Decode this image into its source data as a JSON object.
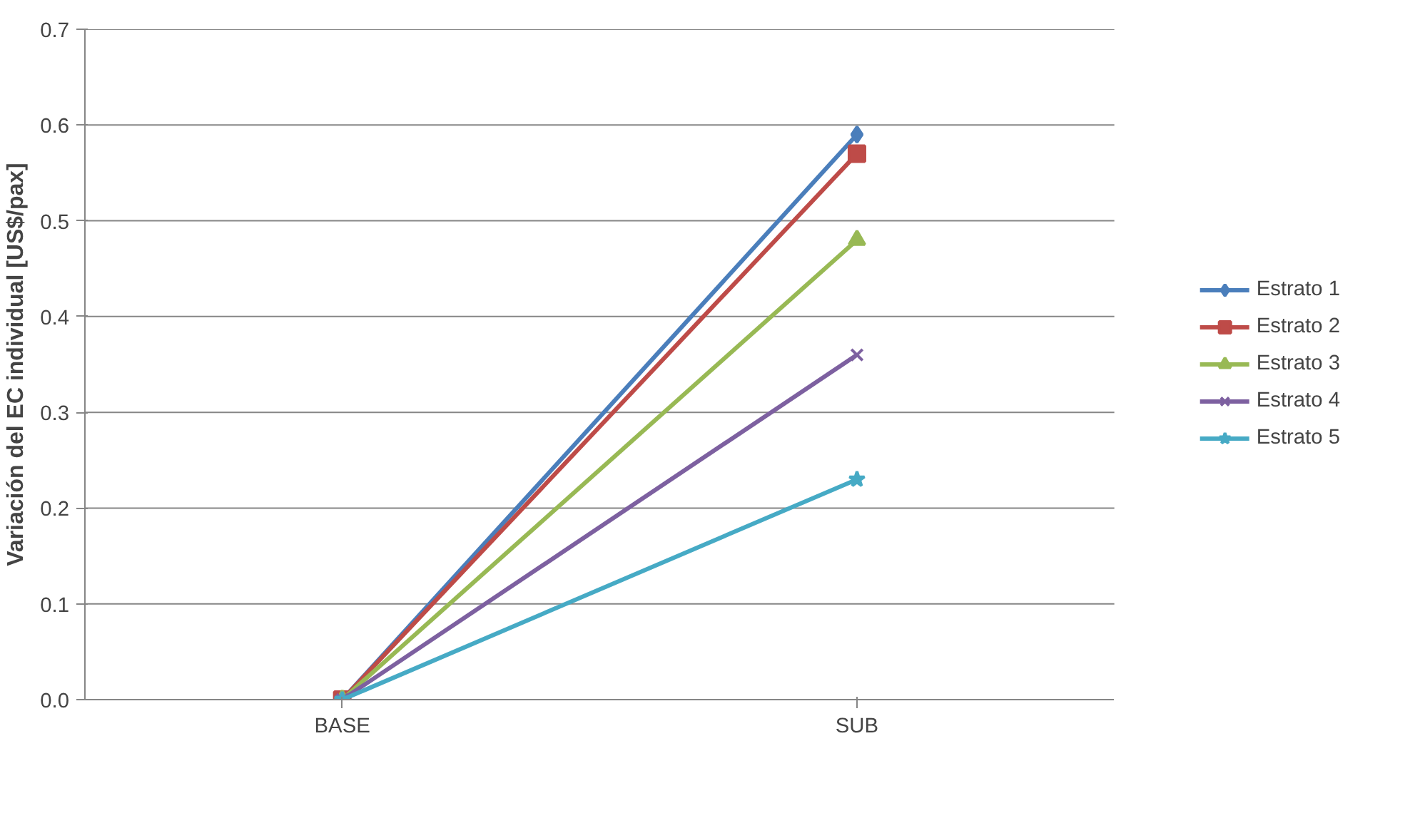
{
  "chart_data": {
    "type": "line",
    "ylabel": "Variación del EC individual [US$/pax]",
    "categories": [
      "BASE",
      "SUB"
    ],
    "series": [
      {
        "name": "Estrato 1",
        "color": "#4a7ebb",
        "marker": "diamond",
        "values": [
          0,
          0.59
        ]
      },
      {
        "name": "Estrato 2",
        "color": "#be4b48",
        "marker": "square",
        "values": [
          0,
          0.57
        ]
      },
      {
        "name": "Estrato 3",
        "color": "#98b954",
        "marker": "triangle",
        "values": [
          0,
          0.48
        ]
      },
      {
        "name": "Estrato 4",
        "color": "#7d60a0",
        "marker": "cross",
        "values": [
          0,
          0.36
        ]
      },
      {
        "name": "Estrato 5",
        "color": "#46aac5",
        "marker": "star",
        "values": [
          0,
          0.23
        ]
      }
    ],
    "ylim": [
      0,
      0.7
    ],
    "yticks": [
      {
        "value": 0,
        "label": "0.0"
      },
      0.1,
      0.2,
      0.3,
      0.4,
      0.5,
      0.6,
      0.7
    ],
    "grid": "y",
    "legend": "right",
    "line_style": "solid"
  }
}
